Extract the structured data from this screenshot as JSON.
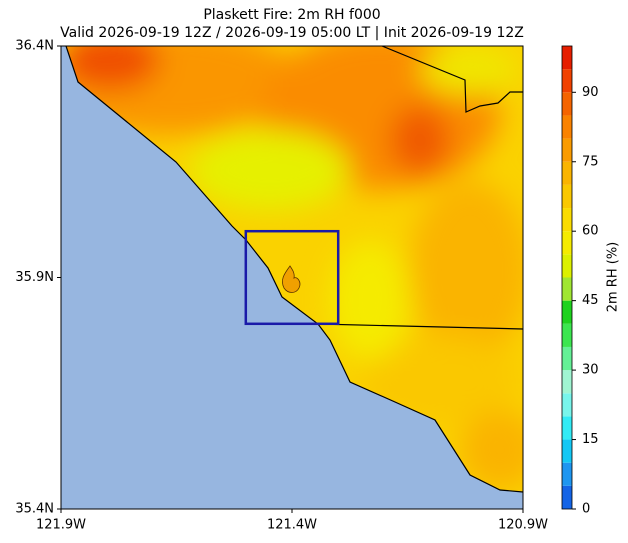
{
  "title": "Plaskett Fire: 2m RH f000",
  "subtitle": "Valid 2026-09-19 12Z / 2026-09-19 05:00 LT | Init 2026-09-19 12Z",
  "map": {
    "xlim": [
      -121.9,
      -120.9
    ],
    "ylim": [
      35.4,
      36.4
    ],
    "xticks": [
      {
        "value": -121.9,
        "label": "121.9W"
      },
      {
        "value": -121.4,
        "label": "121.4W"
      },
      {
        "value": -120.9,
        "label": "120.9W"
      }
    ],
    "yticks": [
      {
        "value": 35.4,
        "label": "35.4N"
      },
      {
        "value": 35.9,
        "label": "35.9N"
      },
      {
        "value": 36.4,
        "label": "36.4N"
      }
    ],
    "box": {
      "lon": [
        -121.5,
        -121.3
      ],
      "lat": [
        35.8,
        36.0
      ],
      "color": "#1a1aa8"
    }
  },
  "colorbar": {
    "label": "2m RH (%)",
    "bounds": [
      0,
      5,
      10,
      15,
      20,
      25,
      30,
      35,
      40,
      45,
      50,
      55,
      60,
      65,
      70,
      75,
      80,
      85,
      90,
      95,
      100
    ],
    "colors": [
      "#1464e6",
      "#1e96f0",
      "#14c8f5",
      "#32ebf5",
      "#78f5eb",
      "#a0f5d2",
      "#64f096",
      "#3ce650",
      "#1ed21e",
      "#a0e632",
      "#dcf000",
      "#f5eb00",
      "#fadc00",
      "#fac800",
      "#fab400",
      "#fa9b00",
      "#fa8200",
      "#f56400",
      "#f04100",
      "#e61e00"
    ],
    "ticks": [
      0,
      15,
      30,
      45,
      60,
      75,
      90
    ]
  }
}
